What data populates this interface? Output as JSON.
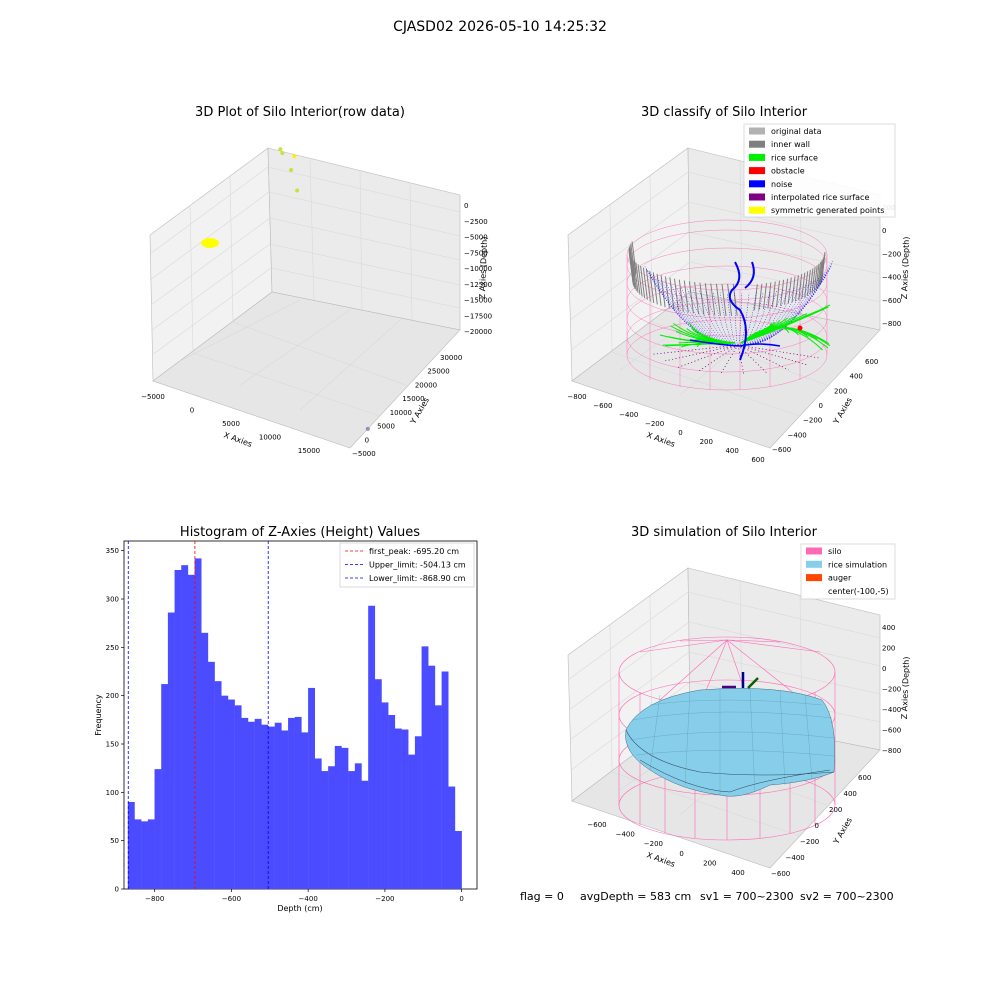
{
  "figure": {
    "suptitle": "CJASD02 2026-05-10 14:25:32",
    "footer": {
      "flag": "flag = 0",
      "avg_depth": "avgDepth = 583 cm",
      "sv1": "sv1 = 700~2300",
      "sv2": "sv2 = 700~2300"
    }
  },
  "colors": {
    "original_data": "#b2b2b2",
    "inner_wall": "#7f7f7f",
    "rice_surface": "#00ee00",
    "obstacle": "#ff0000",
    "noise": "#0000ff",
    "interpolated_rice_surface": "#800080",
    "symmetric_generated_points": "#ffff00",
    "silo": "#ff69b4",
    "rice_simulation": "#87ceeb",
    "auger": "#ff4500",
    "hist_bar": "#4b4bff",
    "first_peak": "#ff0000",
    "limits": "#0000ff",
    "pane": "#f2f2f2",
    "grid": "#d9d9d9"
  },
  "chart_data": [
    {
      "type": "scatter",
      "title": "3D Plot of Silo Interior(row data)",
      "xlabel": "X Axies",
      "ylabel": "Y Axies",
      "zlabel": "Z Axies (Depth)",
      "x_ticks": [
        "−5000",
        "0",
        "5000",
        "10000",
        "15000"
      ],
      "y_ticks": [
        "−5000",
        "0",
        "5000",
        "10000",
        "15000",
        "20000",
        "25000",
        "30000"
      ],
      "z_ticks": [
        "0",
        "−2500",
        "−5000",
        "−7500",
        "−10000",
        "−12500",
        "−15000",
        "−17500",
        "−20000"
      ],
      "points": [
        {
          "x": -2400,
          "y": 30000,
          "z": -7200,
          "color": "#c8e040"
        },
        {
          "x": -2000,
          "y": 29500,
          "z": -7300,
          "color": "#c8e040"
        },
        {
          "x": -500,
          "y": 29000,
          "z": -7000,
          "color": "#ffee00"
        },
        {
          "x": -800,
          "y": 28800,
          "z": -8400,
          "color": "#c8e040"
        },
        {
          "x": 300,
          "y": 27500,
          "z": -9700,
          "color": "#c8e040"
        },
        {
          "x": 17000,
          "y": 1000,
          "z": -20000,
          "color": "#9090b0"
        }
      ]
    },
    {
      "type": "scatter",
      "title": "3D classify of Silo Interior",
      "xlabel": "X Axies",
      "ylabel": "Y Axies",
      "zlabel": "Z Axies (Depth)",
      "x_ticks": [
        "−800",
        "−600",
        "−400",
        "−200",
        "0",
        "200",
        "400",
        "600"
      ],
      "y_ticks": [
        "−600",
        "−400",
        "−200",
        "0",
        "200",
        "400",
        "600"
      ],
      "z_ticks": [
        "200",
        "0",
        "−200",
        "−400",
        "−600",
        "−800"
      ],
      "legend": [
        "original data",
        "inner wall",
        "rice surface",
        "obstacle",
        "noise",
        "interpolated rice surface",
        "symmetric generated points"
      ],
      "legend_position": "top-right"
    },
    {
      "type": "bar",
      "title": "Histogram of Z-Axies (Height) Values",
      "xlabel": "Depth (cm)",
      "ylabel": "Frequency",
      "xlim": [
        -880,
        40
      ],
      "ylim": [
        0,
        360
      ],
      "x_ticks": [
        -800,
        -600,
        -400,
        -200,
        0
      ],
      "x_tick_labels": [
        "−800",
        "−600",
        "−400",
        "−200",
        "0"
      ],
      "y_ticks": [
        0,
        50,
        100,
        150,
        200,
        250,
        300,
        350
      ],
      "bin_start": -870,
      "bin_width": 17.4,
      "values": [
        90,
        72,
        70,
        72,
        124,
        212,
        286,
        330,
        335,
        325,
        342,
        265,
        235,
        215,
        200,
        196,
        190,
        177,
        173,
        176,
        170,
        168,
        172,
        164,
        177,
        178,
        162,
        208,
        135,
        122,
        127,
        148,
        146,
        122,
        130,
        112,
        293,
        217,
        193,
        180,
        166,
        165,
        139,
        158,
        251,
        231,
        190,
        225,
        106,
        60
      ],
      "lines": [
        {
          "name": "first_peak: -695.20 cm",
          "x": -695.2,
          "color": "#ff0000"
        },
        {
          "name": "Upper_limit: -504.13 cm",
          "x": -504.13,
          "color": "#0000ff"
        },
        {
          "name": "Lower_limit: -868.90 cm",
          "x": -868.9,
          "color": "#0000ff"
        }
      ],
      "legend_position": "top-right"
    },
    {
      "type": "area",
      "title": "3D simulation of Silo Interior",
      "xlabel": "X Axies",
      "ylabel": "Y Axies",
      "zlabel": "Z Axies (Depth)",
      "x_ticks": [
        "−600",
        "−400",
        "−200",
        "0",
        "200",
        "400"
      ],
      "y_ticks": [
        "−600",
        "−400",
        "−200",
        "0",
        "200",
        "400",
        "600"
      ],
      "z_ticks": [
        "400",
        "200",
        "0",
        "−200",
        "−400",
        "−600",
        "−800"
      ],
      "legend": [
        "silo",
        "rice simulation",
        "auger",
        "center(-100,-5)"
      ],
      "legend_position": "top-right"
    }
  ]
}
